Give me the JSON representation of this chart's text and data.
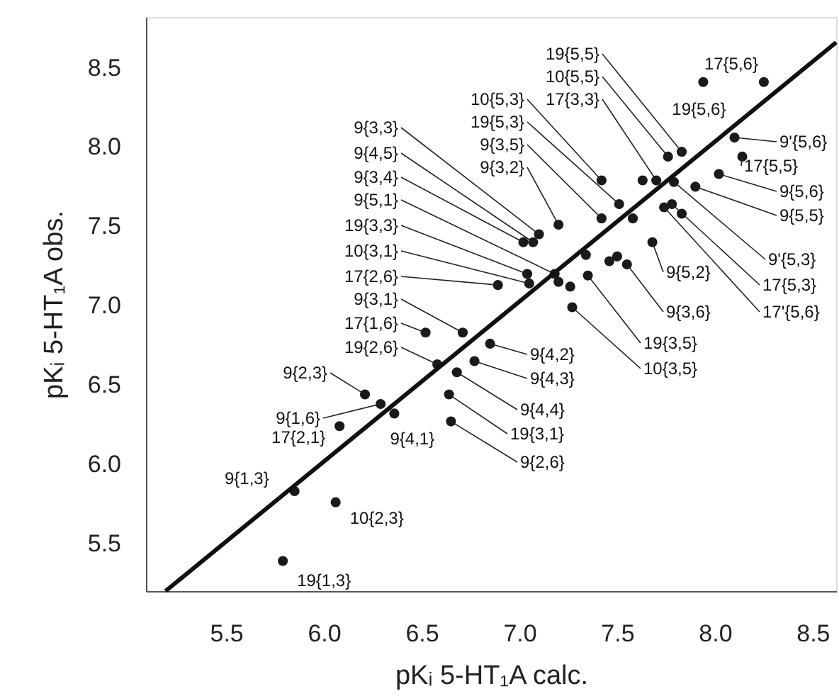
{
  "chart_data": {
    "type": "scatter",
    "xlabel": "pKᵢ 5-HT₁A calc.",
    "ylabel": "pKᵢ 5-HT₁A obs.",
    "xlim": [
      5.09,
      8.62
    ],
    "ylim": [
      5.2,
      8.82
    ],
    "xticks": [
      5.5,
      {
        "value": 6,
        "label": "6.0"
      },
      6.5,
      {
        "value": 7,
        "label": "7.0"
      },
      7.5,
      {
        "value": 8,
        "label": "8.0"
      },
      8.5
    ],
    "yticks": [
      5.5,
      {
        "value": 6,
        "label": "6.0"
      },
      6.5,
      {
        "value": 7,
        "label": "7.0"
      },
      7.5,
      {
        "value": 8,
        "label": "8.0"
      },
      8.5
    ],
    "grid": false,
    "series": [
      {
        "color": "#1a1a1a",
        "marker": "circle",
        "x": [
          7.1,
          7.07,
          7.02,
          7.18,
          7.04,
          7.05,
          6.89,
          6.71,
          6.52,
          6.58,
          6.21,
          6.29,
          6.08,
          5.85,
          5.79,
          6.06,
          6.36,
          6.85,
          6.77,
          6.68,
          6.64,
          6.65,
          7.35,
          7.27,
          7.55,
          7.68,
          7.74,
          7.78,
          7.79,
          7.9,
          8.02,
          8.14,
          8.1,
          8.25,
          7.94,
          7.83,
          7.76,
          7.7,
          7.42,
          7.51,
          7.42,
          7.2,
          7.63,
          7.83,
          7.46,
          7.5,
          7.58,
          7.2,
          7.26,
          7.34
        ],
        "values": [
          7.45,
          7.4,
          7.4,
          7.2,
          7.2,
          7.14,
          7.13,
          6.83,
          6.83,
          6.63,
          6.44,
          6.38,
          6.24,
          5.83,
          5.39,
          5.76,
          6.32,
          6.76,
          6.65,
          6.58,
          6.44,
          6.27,
          7.19,
          6.99,
          7.26,
          7.4,
          7.62,
          7.64,
          7.78,
          7.75,
          7.83,
          7.94,
          8.06,
          8.41,
          8.41,
          7.97,
          7.94,
          7.79,
          7.79,
          7.64,
          7.55,
          7.51,
          7.79,
          7.58,
          7.28,
          7.31,
          7.55,
          7.15,
          7.12,
          7.32
        ]
      },
      {
        "type": "line",
        "color": "#111111",
        "line_style": "solid",
        "marker": "none",
        "x": [
          5.19,
          8.62
        ],
        "values": [
          5.2,
          8.66
        ]
      }
    ],
    "annotations": [
      {
        "text": "9{3,3}",
        "x": 7.1,
        "y": 7.45
      },
      {
        "text": "9{4,5}",
        "x": 7.07,
        "y": 7.4
      },
      {
        "text": "9{3,4}",
        "x": 7.02,
        "y": 7.4
      },
      {
        "text": "9{5,1}",
        "x": 7.18,
        "y": 7.2
      },
      {
        "text": "19{3,3}",
        "x": 7.04,
        "y": 7.2
      },
      {
        "text": "10{3,1}",
        "x": 7.05,
        "y": 7.14
      },
      {
        "text": "17{2,6}",
        "x": 6.89,
        "y": 7.13
      },
      {
        "text": "9{3,1}",
        "x": 6.71,
        "y": 6.83
      },
      {
        "text": "17{1,6}",
        "x": 6.52,
        "y": 6.83
      },
      {
        "text": "19{2,6}",
        "x": 6.58,
        "y": 6.63
      },
      {
        "text": "9{2,3}",
        "x": 6.21,
        "y": 6.44
      },
      {
        "text": "9{1,6}",
        "x": 6.29,
        "y": 6.38
      },
      {
        "text": "17{2,1}",
        "x": 6.08,
        "y": 6.24
      },
      {
        "text": "9{1,3}",
        "x": 5.85,
        "y": 5.83
      },
      {
        "text": "19{1,3}",
        "x": 5.79,
        "y": 5.39
      },
      {
        "text": "10{2,3}",
        "x": 6.06,
        "y": 5.76
      },
      {
        "text": "9{4,1}",
        "x": 6.36,
        "y": 6.32
      },
      {
        "text": "9{4,2}",
        "x": 6.85,
        "y": 6.76
      },
      {
        "text": "9{4,3}",
        "x": 6.77,
        "y": 6.65
      },
      {
        "text": "9{4,4}",
        "x": 6.68,
        "y": 6.58
      },
      {
        "text": "19{3,1}",
        "x": 6.64,
        "y": 6.44
      },
      {
        "text": "9{2,6}",
        "x": 6.65,
        "y": 6.27
      },
      {
        "text": "19{3,5}",
        "x": 7.35,
        "y": 7.19
      },
      {
        "text": "10{3,5}",
        "x": 7.27,
        "y": 6.99
      },
      {
        "text": "9{3,6}",
        "x": 7.55,
        "y": 7.26
      },
      {
        "text": "9{5,2}",
        "x": 7.68,
        "y": 7.4
      },
      {
        "text": "17'{5,6}",
        "x": 7.74,
        "y": 7.62
      },
      {
        "text": "17{5,3}",
        "x": 7.78,
        "y": 7.64
      },
      {
        "text": "9'{5,3}",
        "x": 7.79,
        "y": 7.78
      },
      {
        "text": "9{5,5}",
        "x": 7.9,
        "y": 7.75
      },
      {
        "text": "9{5,6}",
        "x": 8.02,
        "y": 7.83
      },
      {
        "text": "17{5,5}",
        "x": 8.14,
        "y": 7.94
      },
      {
        "text": "9'{5,6}",
        "x": 8.1,
        "y": 8.06
      },
      {
        "text": "17{5,6}",
        "x": 8.25,
        "y": 8.41
      },
      {
        "text": "19{5,6}",
        "x": 7.94,
        "y": 8.41
      },
      {
        "text": "19{5,5}",
        "x": 7.83,
        "y": 7.97
      },
      {
        "text": "10{5,5}",
        "x": 7.76,
        "y": 7.94
      },
      {
        "text": "17{3,3}",
        "x": 7.7,
        "y": 7.79
      },
      {
        "text": "10{5,3}",
        "x": 7.42,
        "y": 7.79
      },
      {
        "text": "19{5,3}",
        "x": 7.51,
        "y": 7.64
      },
      {
        "text": "9{3,5}",
        "x": 7.42,
        "y": 7.55
      },
      {
        "text": "9{3,2}",
        "x": 7.2,
        "y": 7.51
      }
    ]
  }
}
